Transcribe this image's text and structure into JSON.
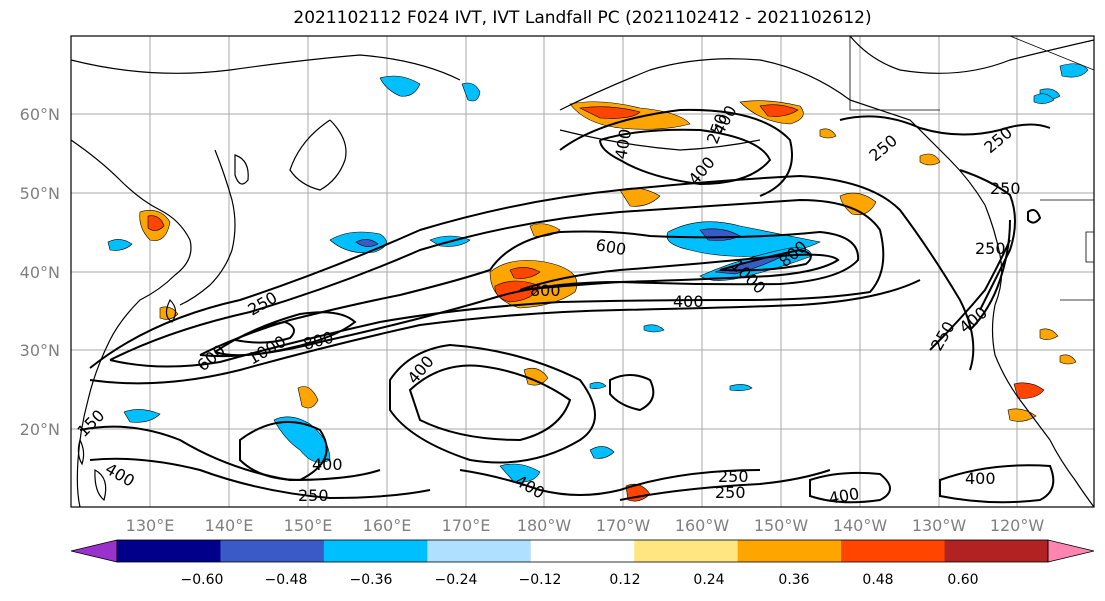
{
  "title": "2021102112 F024 IVT, IVT Landfall PC (2021102412 - 2021102612)",
  "map": {
    "lat_ticks": [
      "60°N",
      "50°N",
      "40°N",
      "30°N",
      "20°N"
    ],
    "lon_ticks": [
      "130°E",
      "140°E",
      "150°E",
      "160°E",
      "170°E",
      "180°W",
      "170°W",
      "160°W",
      "150°W",
      "140°W",
      "130°W",
      "120°W"
    ],
    "tick_label_color": "#808080",
    "grid": true,
    "contour_labels": [
      {
        "text": "250",
        "id": "c250-japan"
      },
      {
        "text": "600",
        "id": "c600-west"
      },
      {
        "text": "1000",
        "id": "c1000-west"
      },
      {
        "text": "800",
        "id": "c800-west"
      },
      {
        "text": "400",
        "id": "c400-central"
      },
      {
        "text": "600",
        "id": "c600-central"
      },
      {
        "text": "800",
        "id": "c800-central"
      },
      {
        "text": "1000",
        "id": "c1000-east"
      },
      {
        "text": "800",
        "id": "c800-east"
      },
      {
        "text": "400",
        "id": "c400-east"
      },
      {
        "text": "400",
        "id": "c400-gulf"
      },
      {
        "text": "250",
        "id": "c250-bering"
      },
      {
        "text": "250",
        "id": "c250-alaska"
      },
      {
        "text": "250",
        "id": "c250-canada"
      },
      {
        "text": "250",
        "id": "c250-coast"
      },
      {
        "text": "250",
        "id": "c250-oregon"
      },
      {
        "text": "400",
        "id": "c400-california"
      },
      {
        "text": "250",
        "id": "c250-socal"
      },
      {
        "text": "400",
        "id": "c400-subtrop"
      },
      {
        "text": "150",
        "id": "c150-west"
      },
      {
        "text": "400",
        "id": "c400-sw"
      },
      {
        "text": "400",
        "id": "c400-south"
      },
      {
        "text": "250",
        "id": "c250-south"
      },
      {
        "text": "400",
        "id": "c400-se"
      },
      {
        "text": "250",
        "id": "c250-se1"
      },
      {
        "text": "250",
        "id": "c250-se2"
      },
      {
        "text": "400",
        "id": "c400-far-se"
      },
      {
        "text": "400",
        "id": "c400-hawaii"
      },
      {
        "text": "400",
        "id": "c400-bering2"
      }
    ]
  },
  "colorbar": {
    "labels": [
      "−0.60",
      "−0.48",
      "−0.36",
      "−0.24",
      "−0.12",
      "0.12",
      "0.24",
      "0.36",
      "0.48",
      "0.60"
    ],
    "colors": [
      "#9932CC",
      "#00008B",
      "#3A5BC7",
      "#00BFFF",
      "#B0E0FF",
      "#FFFFFF",
      "#FFE680",
      "#FFA500",
      "#FF4500",
      "#B22222",
      "#FF85B0"
    ]
  }
}
